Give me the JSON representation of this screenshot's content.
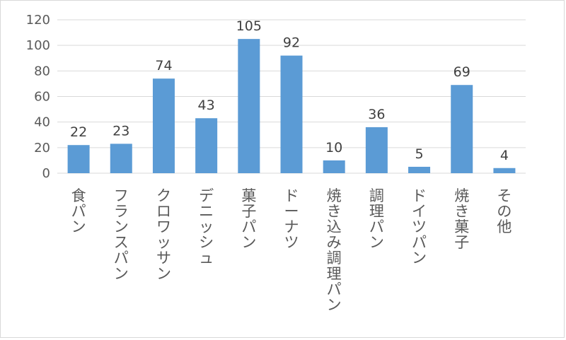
{
  "chart_data": {
    "type": "bar",
    "categories": [
      "食パン",
      "フランスパン",
      "クロワッサン",
      "デニッシュ",
      "菓子パン",
      "ドーナツ",
      "焼き込み調理パン",
      "調理パン",
      "ドイツパン",
      "焼き菓子",
      "その他"
    ],
    "values": [
      22,
      23,
      74,
      43,
      105,
      92,
      10,
      36,
      5,
      69,
      4
    ],
    "ylim": [
      0,
      120
    ],
    "yticks": [
      0,
      20,
      40,
      60,
      80,
      100,
      120
    ],
    "grid": true,
    "legend": "none",
    "bar_color": "#5b9bd5",
    "grid_color": "#d9d9d9"
  }
}
